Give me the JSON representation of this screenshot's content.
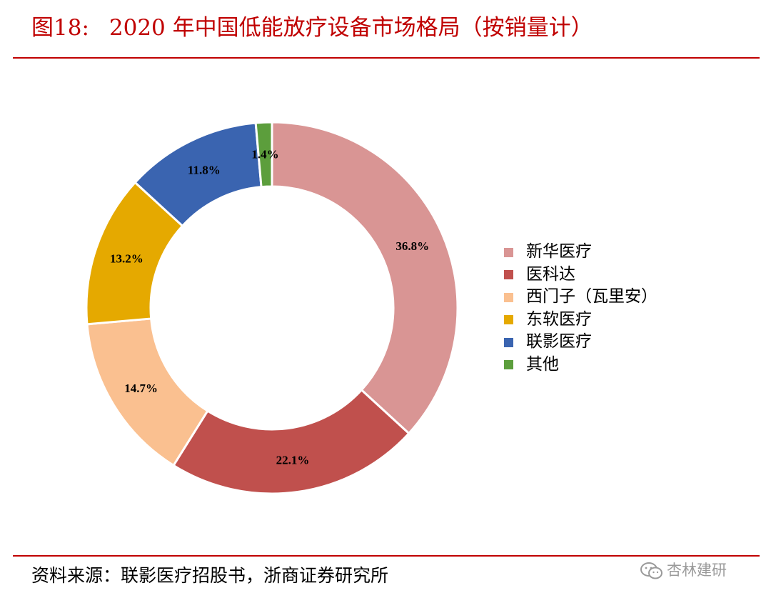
{
  "header": {
    "figure_number": "图18:",
    "title": "2020 年中国低能放疗设备市场格局（按销量计）"
  },
  "chart_data": {
    "type": "pie",
    "variant": "donut",
    "categories": [
      "新华医疗",
      "医科达",
      "西门子（瓦里安）",
      "东软医疗",
      "联影医疗",
      "其他"
    ],
    "values": [
      36.8,
      22.1,
      14.7,
      13.2,
      11.8,
      1.4
    ],
    "data_labels": [
      "36.8%",
      "22.1%",
      "14.7%",
      "13.2%",
      "11.8%",
      "1.4%"
    ],
    "colors": [
      "#d99594",
      "#c0504d",
      "#fac090",
      "#e5a900",
      "#3a64b0",
      "#5c9e3c"
    ],
    "start_angle": "12 o'clock, clockwise",
    "legend_position": "right"
  },
  "footer": {
    "source": "资料来源：联影医疗招股书，浙商证券研究所"
  },
  "watermark": {
    "text": "杏林建研",
    "icon": "wechat-icon"
  }
}
